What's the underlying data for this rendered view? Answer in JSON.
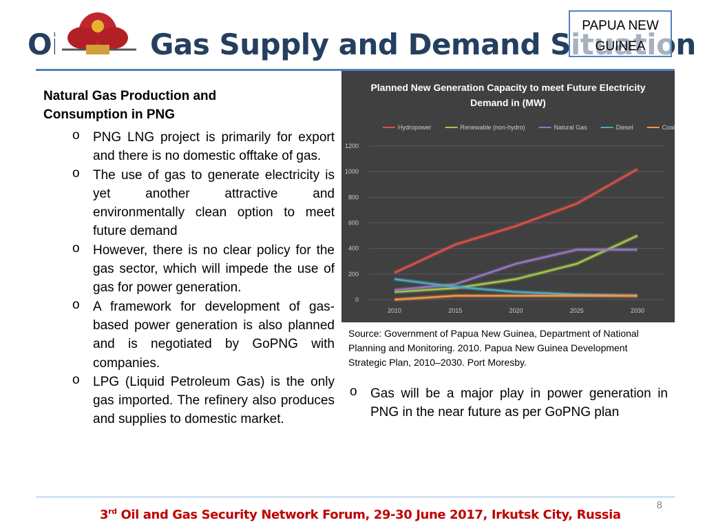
{
  "header": {
    "title": "Oil and Gas Supply and Demand Situation",
    "country": "PAPUA NEW GUINEA"
  },
  "left": {
    "heading": "Natural Gas Production and Consumption in PNG",
    "bullets": [
      "PNG LNG project is primarily for export and there is no domestic offtake of gas.",
      "The use of gas to generate electricity is yet another attractive and environmentally clean option to meet future demand",
      "However, there is no clear policy for the gas sector, which will impede the use of gas for power generation.",
      "A framework for development of gas-based power generation is also planned and is negotiated by GoPNG with companies.",
      "LPG (Liquid Petroleum Gas) is the only gas imported. The refinery also produces and supplies to domestic market."
    ]
  },
  "right": {
    "source": "Source: Government of Papua New Guinea, Department of National Planning and Monitoring. 2010. Papua New Guinea Development Strategic Plan, 2010–2030. Port Moresby.",
    "bullets": [
      "Gas will be a major play in power generation in PNG in the near future as per GoPNG plan"
    ]
  },
  "footer": {
    "ordinal": "3",
    "suffix": "rd",
    "text": " Oil and Gas Security Network Forum, 29-30 June 2017, Irkutsk City, Russia",
    "page": "8"
  },
  "chart_data": {
    "type": "line",
    "title": [
      "Planned New Generation Capacity to meet Future Electricity",
      "Demand in (MW)"
    ],
    "categories": [
      "2010",
      "2015",
      "2020",
      "2025",
      "2030"
    ],
    "series": [
      {
        "name": "Hydropower",
        "color": "#e0504a",
        "values": [
          210,
          430,
          575,
          750,
          1020
        ]
      },
      {
        "name": "Renewable (non-hydro)",
        "color": "#a6c84c",
        "values": [
          60,
          90,
          160,
          280,
          500
        ]
      },
      {
        "name": "Natural Gas",
        "color": "#9478c0",
        "values": [
          75,
          120,
          280,
          390,
          390
        ]
      },
      {
        "name": "Diesel",
        "color": "#4bacc6",
        "values": [
          160,
          100,
          60,
          40,
          30
        ]
      },
      {
        "name": "Coal",
        "color": "#f79646",
        "values": [
          0,
          30,
          30,
          30,
          30
        ]
      }
    ],
    "ylim": [
      0,
      1200
    ],
    "yticks": [
      0,
      200,
      400,
      600,
      800,
      1000,
      1200
    ],
    "grid": true
  }
}
